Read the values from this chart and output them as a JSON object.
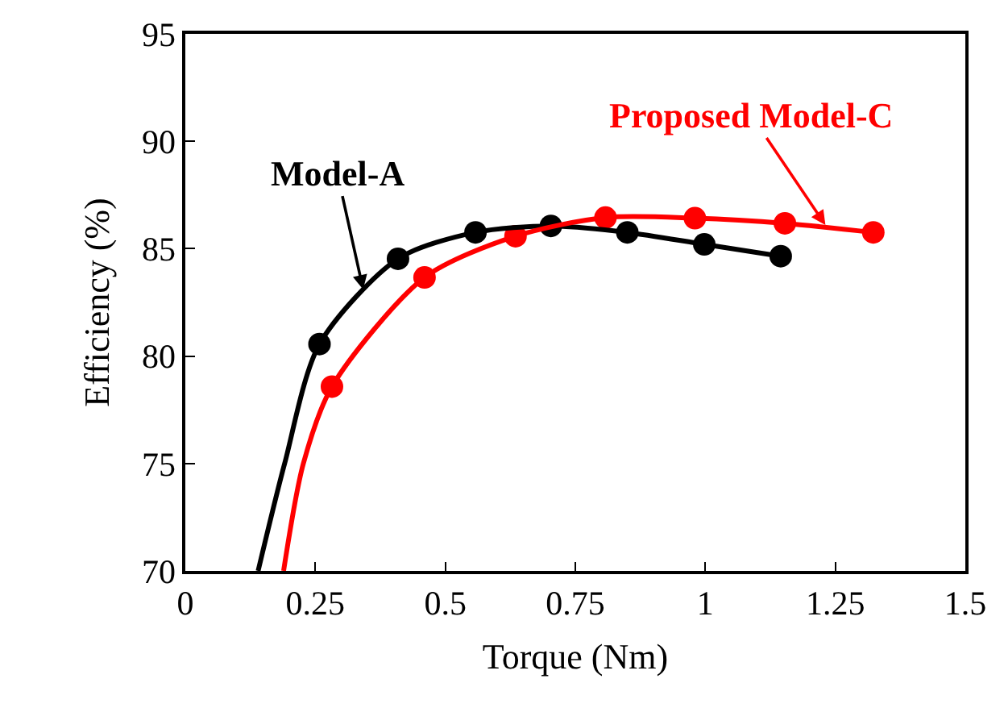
{
  "chart_data": {
    "type": "scatter",
    "xlabel": "Torque (Nm)",
    "ylabel": "Efficiency (%)",
    "xlim": [
      0,
      1.5
    ],
    "xticks": [
      0,
      0.25,
      0.5,
      0.75,
      1,
      1.25,
      1.5
    ],
    "ylim": [
      70,
      95
    ],
    "yticks": [
      70,
      75,
      80,
      85,
      90,
      95
    ],
    "grid": false,
    "marker": "circle",
    "series": [
      {
        "color": "#000000",
        "x": [
          0.258,
          0.409,
          0.558,
          0.703,
          0.85,
          0.998,
          1.145
        ],
        "values": [
          80.56,
          84.53,
          85.76,
          86.06,
          85.76,
          85.2,
          84.65
        ]
      },
      {
        "color": "#ff0000",
        "x": [
          0.282,
          0.46,
          0.635,
          0.808,
          0.98,
          1.153,
          1.323
        ],
        "values": [
          78.58,
          83.66,
          85.58,
          86.45,
          86.42,
          86.18,
          85.76
        ]
      },
      {
        "type": "line",
        "color": "#000000",
        "marker": "none",
        "x": [
          0.14,
          0.191,
          0.258,
          0.409,
          0.558,
          0.703,
          0.85,
          0.998,
          1.145
        ],
        "values": [
          70,
          75,
          80.56,
          84.53,
          85.76,
          86.06,
          85.76,
          85.2,
          84.65
        ]
      },
      {
        "type": "line",
        "color": "#ff0000",
        "marker": "none",
        "x": [
          0.189,
          0.227,
          0.282,
          0.46,
          0.635,
          0.808,
          0.98,
          1.153,
          1.323
        ],
        "values": [
          70,
          75,
          78.58,
          83.66,
          85.58,
          86.45,
          86.42,
          86.18,
          85.76
        ]
      }
    ],
    "annotations": [
      {
        "text": "Model-A",
        "x": 0.342,
        "y": 83.1
      },
      {
        "text": "Proposed Model-C",
        "x": 1.231,
        "y": 86.1
      }
    ]
  }
}
